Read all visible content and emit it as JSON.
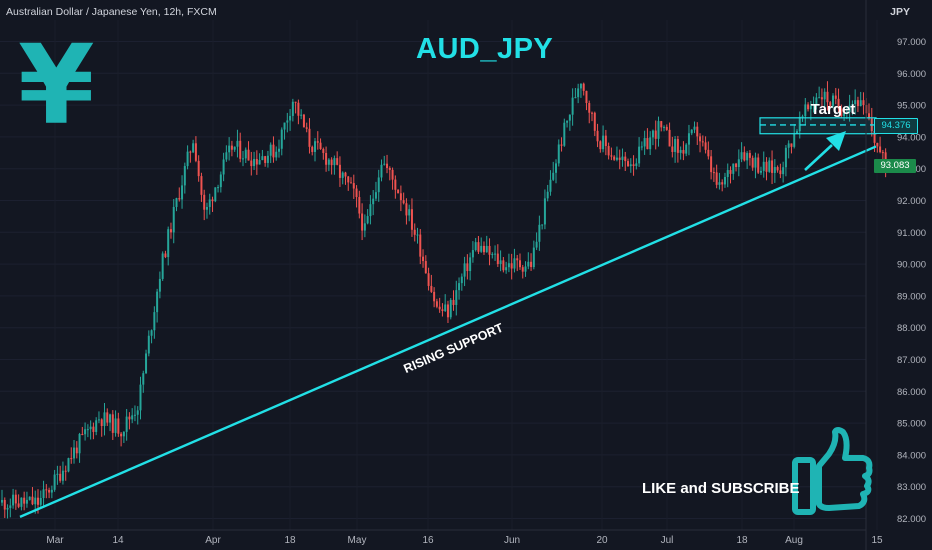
{
  "header": {
    "symbol_info": "Australian Dollar / Japanese Yen, 12h, FXCM",
    "currency": "JPY",
    "title": "AUD_JPY"
  },
  "logo": {
    "glyph": "¥",
    "icon": "yen-icon",
    "color": "#1fb4b4"
  },
  "cta": {
    "text": "LIKE and SUBSCRIBE",
    "icon": "thumbs-up-icon"
  },
  "colors": {
    "background": "#131722",
    "up": "#26a69a",
    "down": "#ef5350",
    "accent": "#22e0e6"
  },
  "chart_data": {
    "type": "candlestick",
    "title": "AUD_JPY",
    "ylabel": "JPY",
    "ylim": [
      81.7,
      97.4
    ],
    "y_ticks": [
      "82.000",
      "83.000",
      "84.000",
      "85.000",
      "86.000",
      "87.000",
      "88.000",
      "89.000",
      "90.000",
      "91.000",
      "92.000",
      "93.000",
      "94.000",
      "95.000",
      "96.000",
      "97.000"
    ],
    "x_tick_labels": [
      "Mar",
      "14",
      "Apr",
      "18",
      "May",
      "16",
      "Jun",
      "20",
      "Jul",
      "18",
      "Aug",
      "15"
    ],
    "close_path": [
      [
        "Feb 28",
        82.5
      ],
      [
        "Mar 03",
        83.2
      ],
      [
        "Mar 07",
        84.3
      ],
      [
        "Mar 11",
        85.2
      ],
      [
        "Mar 15",
        84.8
      ],
      [
        "Mar 18",
        85.6
      ],
      [
        "Mar 22",
        89.8
      ],
      [
        "Mar 25",
        92.0
      ],
      [
        "Mar 28",
        94.0
      ],
      [
        "Mar 30",
        91.5
      ],
      [
        "Apr 01",
        92.5
      ],
      [
        "Apr 04",
        93.7
      ],
      [
        "Apr 08",
        93.3
      ],
      [
        "Apr 12",
        93.6
      ],
      [
        "Apr 15",
        95.2
      ],
      [
        "Apr 18",
        93.8
      ],
      [
        "Apr 22",
        93.2
      ],
      [
        "Apr 26",
        92.2
      ],
      [
        "Apr 28",
        91.0
      ],
      [
        "May 01",
        93.3
      ],
      [
        "May 05",
        92.0
      ],
      [
        "May 08",
        90.5
      ],
      [
        "May 11",
        88.6
      ],
      [
        "May 13",
        88.5
      ],
      [
        "May 18",
        90.6
      ],
      [
        "May 23",
        90.0
      ],
      [
        "May 28",
        90.0
      ],
      [
        "Jun 02",
        93.6
      ],
      [
        "Jun 06",
        95.9
      ],
      [
        "Jun 09",
        94.0
      ],
      [
        "Jun 13",
        93.2
      ],
      [
        "Jun 16",
        93.3
      ],
      [
        "Jun 20",
        94.3
      ],
      [
        "Jun 24",
        93.5
      ],
      [
        "Jun 27",
        94.2
      ],
      [
        "Jul 01",
        92.3
      ],
      [
        "Jul 05",
        93.6
      ],
      [
        "Jul 09",
        93.0
      ],
      [
        "Jul 12",
        93.0
      ],
      [
        "Jul 15",
        94.3
      ],
      [
        "Jul 19",
        95.4
      ],
      [
        "Jul 23",
        94.9
      ],
      [
        "Jul 26",
        95.2
      ],
      [
        "Jul 28",
        94.5
      ],
      [
        "Jul 31",
        93.08
      ]
    ],
    "price_badges": [
      {
        "value": "94.376",
        "style": "target"
      },
      {
        "value": "93.083",
        "style": "last"
      }
    ],
    "annotations": {
      "support_label": "RISING SUPPORT",
      "support_line": {
        "from": [
          "Feb 28",
          82.05
        ],
        "to": [
          "Aug 15",
          93.7
        ]
      },
      "target_label": "Target",
      "target_zone": {
        "from": "Jul 20",
        "to": "Aug 14",
        "low": 94.1,
        "high": 94.6,
        "level": 94.376
      },
      "target_arrow": {
        "from": [
          "Jul 30",
          92.9
        ],
        "to": [
          "Aug 10",
          94.1
        ]
      }
    }
  }
}
